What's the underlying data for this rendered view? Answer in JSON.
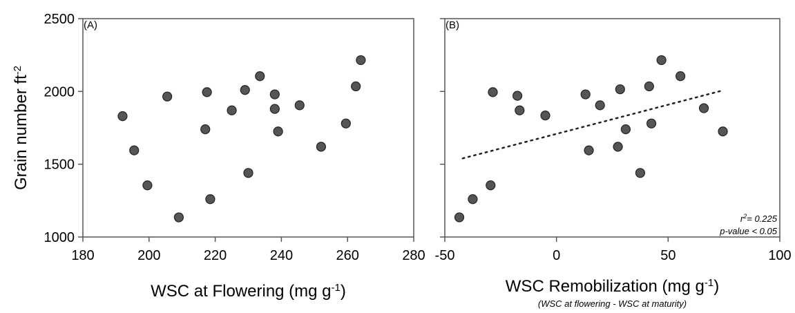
{
  "chart_data": [
    {
      "type": "scatter",
      "panel_label": "(A)",
      "xlabel": "WSC at Flowering (mg g",
      "xlabel_sup": "-1",
      "xlabel_close": ")",
      "ylabel": "Grain number ft",
      "ylabel_sup": "-2",
      "xlim": [
        180,
        280
      ],
      "ylim": [
        1000,
        2500
      ],
      "xticks": [
        180,
        200,
        220,
        240,
        260,
        280
      ],
      "yticks": [
        1000,
        1500,
        2000,
        2500
      ],
      "grid": false,
      "marker_color": "#555555",
      "points": [
        {
          "x": 192,
          "y": 1830
        },
        {
          "x": 195.5,
          "y": 1595
        },
        {
          "x": 199.5,
          "y": 1355
        },
        {
          "x": 205.5,
          "y": 1965
        },
        {
          "x": 209,
          "y": 1135
        },
        {
          "x": 217,
          "y": 1740
        },
        {
          "x": 217.5,
          "y": 1995
        },
        {
          "x": 218.5,
          "y": 1260
        },
        {
          "x": 225,
          "y": 1870
        },
        {
          "x": 229,
          "y": 2010
        },
        {
          "x": 230,
          "y": 1440
        },
        {
          "x": 233.5,
          "y": 2105
        },
        {
          "x": 238,
          "y": 1980
        },
        {
          "x": 238,
          "y": 1880
        },
        {
          "x": 239,
          "y": 1725
        },
        {
          "x": 245.5,
          "y": 1905
        },
        {
          "x": 252,
          "y": 1620
        },
        {
          "x": 259.5,
          "y": 1780
        },
        {
          "x": 262.5,
          "y": 2035
        },
        {
          "x": 264,
          "y": 2215
        }
      ]
    },
    {
      "type": "scatter",
      "panel_label": "(B)",
      "xlabel": "WSC Remobilization (mg g",
      "xlabel_sup": "-1",
      "xlabel_close": ")",
      "xlabel_sub": "(WSC at flowering - WSC at maturity)",
      "xlim": [
        -50,
        100
      ],
      "ylim": [
        1000,
        2500
      ],
      "xticks": [
        -50,
        0,
        50,
        100
      ],
      "yticks": [
        1000,
        1500,
        2000,
        2500
      ],
      "grid": false,
      "marker_color": "#555555",
      "points": [
        {
          "x": -43.5,
          "y": 1135
        },
        {
          "x": -37.5,
          "y": 1260
        },
        {
          "x": -29.5,
          "y": 1355
        },
        {
          "x": -28.5,
          "y": 1995
        },
        {
          "x": -17.5,
          "y": 1970
        },
        {
          "x": -16.5,
          "y": 1870
        },
        {
          "x": -5,
          "y": 1835
        },
        {
          "x": 13,
          "y": 1980
        },
        {
          "x": 14.5,
          "y": 1595
        },
        {
          "x": 19.5,
          "y": 1905
        },
        {
          "x": 27.5,
          "y": 1620
        },
        {
          "x": 28.5,
          "y": 2015
        },
        {
          "x": 31,
          "y": 1740
        },
        {
          "x": 37.5,
          "y": 1440
        },
        {
          "x": 41.5,
          "y": 2035
        },
        {
          "x": 42.5,
          "y": 1780
        },
        {
          "x": 47,
          "y": 2215
        },
        {
          "x": 55.5,
          "y": 2105
        },
        {
          "x": 66,
          "y": 1885
        },
        {
          "x": 74.5,
          "y": 1725
        }
      ],
      "trendline": {
        "x": [
          -42,
          74
        ],
        "y": [
          1540,
          2005
        ],
        "style": "dotted"
      },
      "stats": {
        "r2_prefix": "r",
        "r2_sup": "2",
        "r2_value": "= 0.225",
        "p_value": "p-value < 0.05"
      }
    }
  ]
}
